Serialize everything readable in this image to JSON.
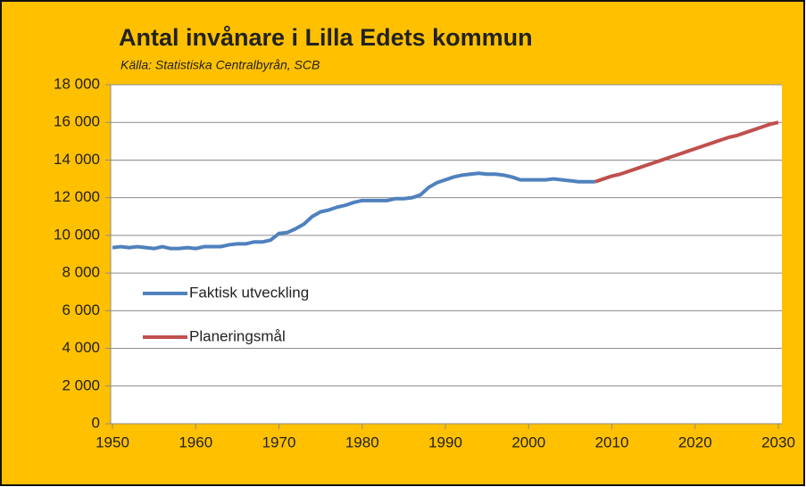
{
  "chart_data": {
    "type": "line",
    "title": "Antal invånare i Lilla Edets kommun",
    "subtitle": "Källa: Statistiska Centralbyrån, SCB",
    "xlim": [
      1950,
      2030
    ],
    "xticks": [
      1950,
      1960,
      1970,
      1980,
      1990,
      2000,
      2010,
      2020,
      2030
    ],
    "ylim": [
      0,
      18000
    ],
    "yticks": [
      0,
      {
        "value": 2000,
        "label": "2 000"
      },
      {
        "value": 4000,
        "label": "4 000"
      },
      {
        "value": 6000,
        "label": "6 000"
      },
      {
        "value": 8000,
        "label": "8 000"
      },
      {
        "value": 10000,
        "label": "10 000"
      },
      {
        "value": 12000,
        "label": "12 000"
      },
      {
        "value": 14000,
        "label": "14 000"
      },
      {
        "value": 16000,
        "label": "16 000"
      },
      {
        "value": 18000,
        "label": "18 000"
      }
    ],
    "grid": true,
    "series": [
      {
        "name": "Faktisk utveckling",
        "color": "#4f81bd",
        "x": [
          1950,
          1951,
          1952,
          1953,
          1954,
          1955,
          1956,
          1957,
          1958,
          1959,
          1960,
          1961,
          1962,
          1963,
          1964,
          1965,
          1966,
          1967,
          1968,
          1969,
          1970,
          1971,
          1972,
          1973,
          1974,
          1975,
          1976,
          1977,
          1978,
          1979,
          1980,
          1981,
          1982,
          1983,
          1984,
          1985,
          1986,
          1987,
          1988,
          1989,
          1990,
          1991,
          1992,
          1993,
          1994,
          1995,
          1996,
          1997,
          1998,
          1999,
          2000,
          2001,
          2002,
          2003,
          2004,
          2005,
          2006,
          2007,
          2008
        ],
        "values": [
          9350,
          9400,
          9350,
          9400,
          9350,
          9300,
          9400,
          9300,
          9300,
          9350,
          9300,
          9400,
          9400,
          9400,
          9500,
          9550,
          9550,
          9650,
          9650,
          9750,
          10100,
          10150,
          10350,
          10600,
          11000,
          11250,
          11350,
          11500,
          11600,
          11750,
          11850,
          11850,
          11850,
          11850,
          11950,
          11950,
          12000,
          12150,
          12550,
          12800,
          12950,
          13100,
          13200,
          13250,
          13300,
          13250,
          13250,
          13200,
          13100,
          12950,
          12950,
          12950,
          12950,
          13000,
          12950,
          12900,
          12850,
          12850,
          12850
        ]
      },
      {
        "name": "Planeringsmål",
        "color": "#c0504d",
        "x": [
          2008,
          2009,
          2010,
          2011,
          2012,
          2013,
          2014,
          2015,
          2016,
          2017,
          2018,
          2019,
          2020,
          2021,
          2022,
          2023,
          2024,
          2025,
          2026,
          2027,
          2028,
          2029,
          2030
        ],
        "values": [
          12850,
          13000,
          13150,
          13250,
          13400,
          13550,
          13700,
          13850,
          14000,
          14150,
          14300,
          14450,
          14600,
          14750,
          14900,
          15050,
          15200,
          15300,
          15450,
          15600,
          15750,
          15900,
          16000
        ]
      }
    ]
  }
}
